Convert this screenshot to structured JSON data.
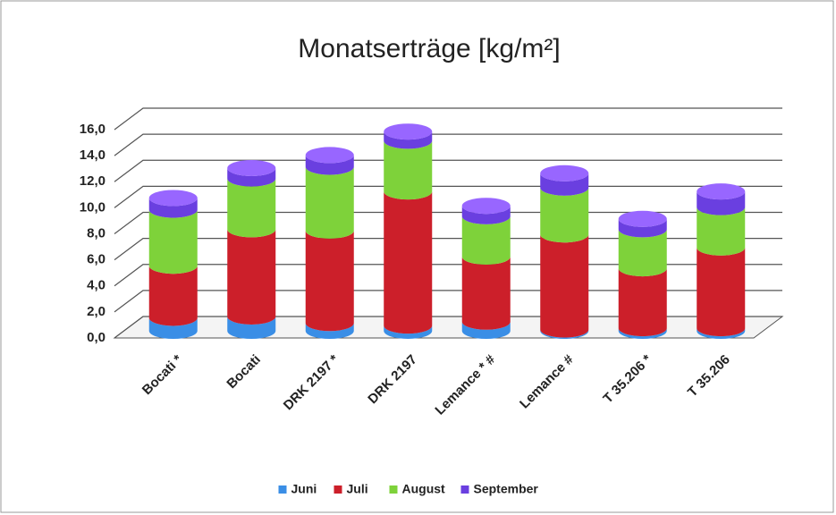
{
  "chart_data": {
    "type": "bar3d-stacked",
    "title": "Monatserträge [kg/m²]",
    "categories": [
      "Bocati *",
      "Bocati",
      "DRK 2197 *",
      "DRK 2197",
      "Lemance * #",
      "Lemance #",
      "T 35.206 *",
      "T 35.206"
    ],
    "series": [
      {
        "name": "Juni",
        "color": "#3a8ee6",
        "values": [
          1.0,
          1.1,
          0.6,
          0.4,
          0.7,
          0.1,
          0.2,
          0.2
        ]
      },
      {
        "name": "Juli",
        "color": "#cc1f2a",
        "values": [
          4.0,
          6.7,
          7.1,
          10.3,
          5.0,
          7.3,
          4.6,
          6.2
        ]
      },
      {
        "name": "August",
        "color": "#7ed23a",
        "values": [
          4.3,
          3.9,
          4.9,
          3.9,
          3.1,
          3.6,
          3.0,
          3.1
        ]
      },
      {
        "name": "September",
        "color": "#6a3fe0",
        "values": [
          0.9,
          0.8,
          0.9,
          0.7,
          0.8,
          1.1,
          0.8,
          1.2
        ]
      }
    ],
    "ylim": [
      0,
      16
    ],
    "yticks": [
      {
        "value": 0,
        "label": "0,0"
      },
      {
        "value": 2,
        "label": "2,0"
      },
      {
        "value": 4,
        "label": "4,0"
      },
      {
        "value": 6,
        "label": "6,0"
      },
      {
        "value": 8,
        "label": "8,0"
      },
      {
        "value": 10,
        "label": "10,0"
      },
      {
        "value": 12,
        "label": "12,0"
      },
      {
        "value": 14,
        "label": "14,0"
      },
      {
        "value": 16,
        "label": "16,0"
      }
    ],
    "grid": true,
    "legend": "bottom"
  }
}
